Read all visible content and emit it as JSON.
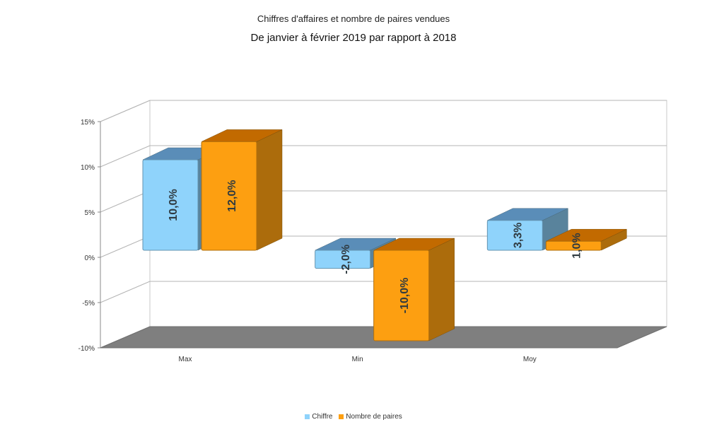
{
  "title": "Chiffres d'affaires et nombre de paires vendues",
  "subtitle": "De janvier à février 2019 par rapport à 2018",
  "chart_data": {
    "type": "bar",
    "categories": [
      "Max",
      "Min",
      "Moy"
    ],
    "series": [
      {
        "name": "Chiffre",
        "values": [
          10.0,
          -2.0,
          3.3
        ],
        "labels": [
          "10,0%",
          "-2,0%",
          "3,3%"
        ],
        "color": "#8fd3fb"
      },
      {
        "name": "Nombre de paires",
        "values": [
          12.0,
          -10.0,
          1.0
        ],
        "labels": [
          "12,0%",
          "-10,0%",
          "1,0%"
        ],
        "color": "#fd9f11"
      }
    ],
    "ylim": [
      -10,
      15
    ],
    "yticks": [
      15,
      10,
      5,
      0,
      -5,
      -10
    ],
    "ytick_labels": [
      "15%",
      "10%",
      "5%",
      "0%",
      "-5%",
      "-10%"
    ],
    "grid": true,
    "legend": "bottom-center"
  }
}
